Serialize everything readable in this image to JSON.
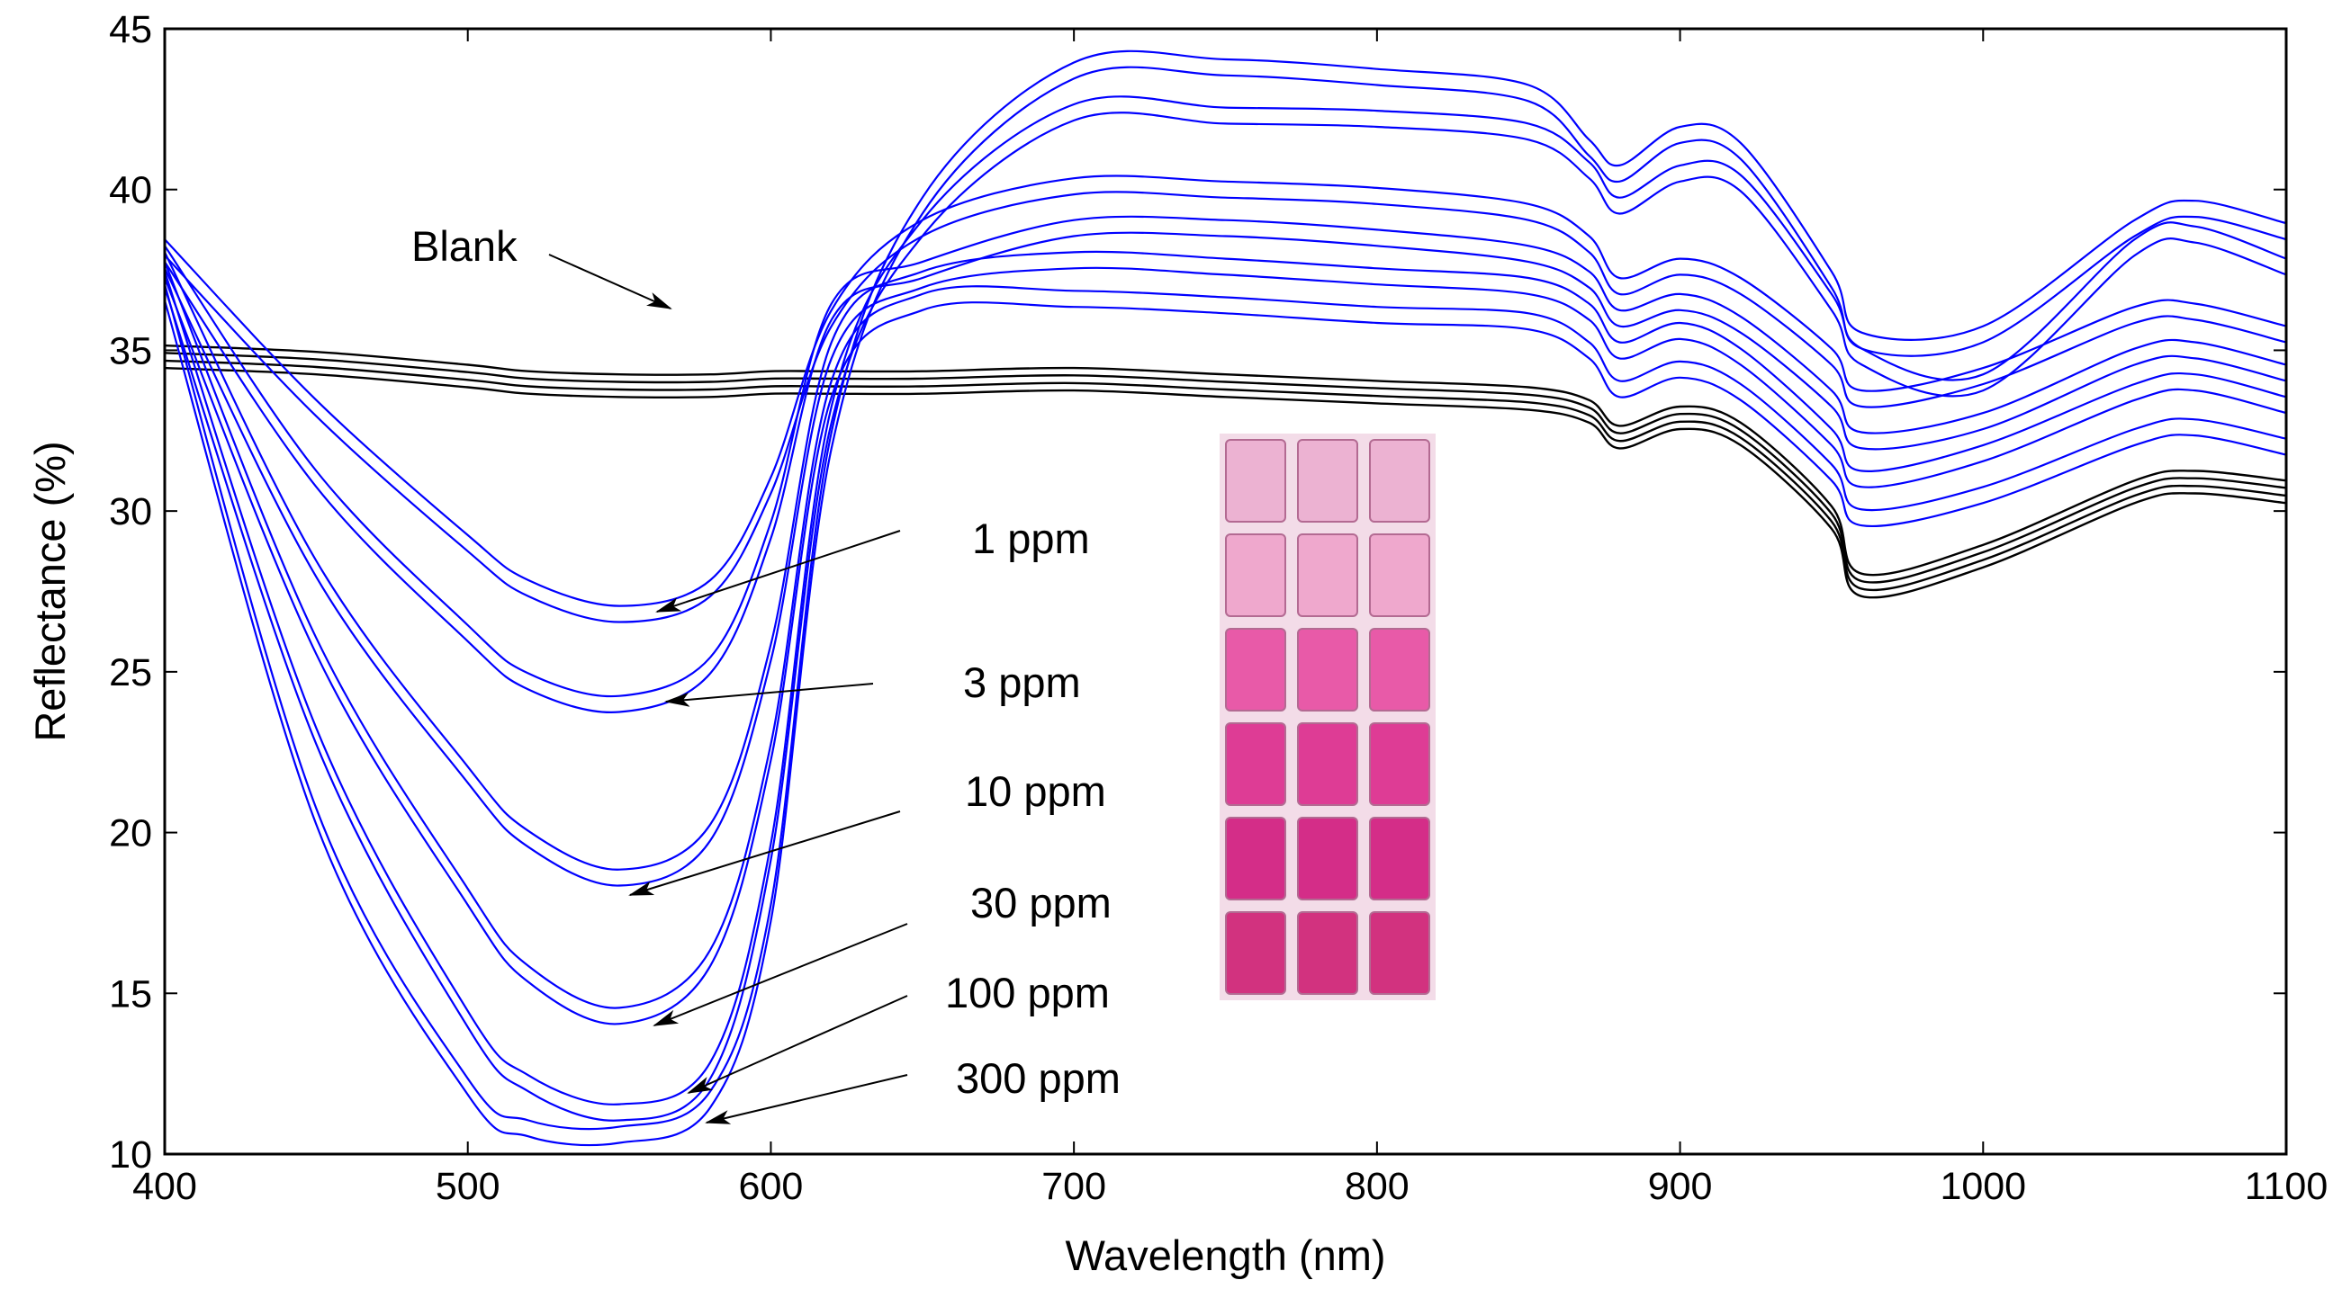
{
  "chart_data": {
    "type": "line",
    "title": "",
    "xlabel": "Wavelength (nm)",
    "ylabel": "Reflectance (%)",
    "xlim": [
      400,
      1100
    ],
    "ylim": [
      10,
      45
    ],
    "xticks": [
      400,
      500,
      600,
      700,
      800,
      900,
      1000,
      1100
    ],
    "yticks": [
      10,
      15,
      20,
      25,
      30,
      35,
      40,
      45
    ],
    "grid": false,
    "colors": {
      "samples": "#0000ff",
      "blank": "#000000",
      "axis": "#000000"
    },
    "x": [
      400,
      450,
      500,
      520,
      550,
      580,
      600,
      620,
      650,
      700,
      750,
      800,
      850,
      870,
      880,
      900,
      920,
      950,
      960,
      1000,
      1050,
      1070,
      1100
    ],
    "series": [
      {
        "name": "Blank",
        "color": "#000000",
        "values": [
          34.8,
          34.6,
          34.2,
          34.0,
          33.9,
          33.9,
          34.0,
          34.0,
          34.0,
          34.1,
          33.9,
          33.7,
          33.5,
          33.1,
          32.3,
          32.9,
          32.4,
          29.8,
          27.7,
          28.6,
          30.6,
          30.9,
          30.6
        ]
      },
      {
        "name": "1 ppm",
        "color": "#0000ff",
        "values": [
          38.2,
          33.2,
          29.0,
          27.6,
          26.8,
          27.6,
          30.8,
          36.0,
          38.8,
          40.1,
          40.0,
          39.8,
          39.3,
          38.3,
          37.0,
          37.6,
          37.0,
          34.8,
          33.5,
          34.2,
          36.1,
          36.2,
          35.5
        ]
      },
      {
        "name": "3 ppm",
        "color": "#0000ff",
        "values": [
          38.0,
          31.0,
          26.2,
          24.7,
          24.0,
          25.2,
          29.4,
          36.2,
          37.5,
          38.8,
          38.8,
          38.5,
          38.0,
          37.2,
          36.0,
          36.5,
          35.8,
          33.5,
          32.2,
          32.8,
          34.8,
          35.0,
          34.3
        ]
      },
      {
        "name": "10 ppm",
        "color": "#0000ff",
        "values": [
          37.8,
          28.2,
          21.8,
          19.8,
          18.6,
          20.0,
          25.6,
          35.0,
          37.2,
          37.8,
          37.6,
          37.3,
          37.0,
          36.2,
          35.0,
          35.6,
          34.8,
          32.3,
          31.0,
          31.8,
          33.7,
          34.0,
          33.3
        ]
      },
      {
        "name": "30 ppm",
        "color": "#0000ff",
        "values": [
          37.5,
          25.8,
          18.0,
          15.6,
          14.3,
          16.1,
          22.5,
          33.8,
          36.5,
          36.6,
          36.4,
          36.1,
          35.9,
          35.0,
          33.8,
          34.4,
          33.7,
          31.2,
          29.8,
          30.5,
          32.3,
          32.6,
          32.0
        ]
      },
      {
        "name": "100 ppm",
        "color": "#0000ff",
        "values": [
          37.2,
          23.0,
          14.2,
          12.2,
          11.3,
          12.6,
          19.4,
          33.0,
          38.8,
          42.4,
          42.3,
          42.2,
          41.8,
          40.6,
          39.5,
          40.5,
          40.2,
          36.5,
          34.8,
          34.0,
          38.2,
          38.6,
          37.6
        ]
      },
      {
        "name": "300 ppm",
        "color": "#0000ff",
        "values": [
          36.8,
          20.5,
          12.1,
          10.8,
          10.6,
          11.7,
          17.5,
          32.2,
          39.5,
          43.7,
          43.8,
          43.5,
          43.0,
          41.3,
          40.5,
          41.7,
          41.2,
          37.2,
          35.3,
          35.5,
          38.8,
          39.4,
          38.7
        ]
      }
    ],
    "annotations": [
      {
        "text": "Blank",
        "points_to": [
          570,
          35.7
        ]
      },
      {
        "text": "1 ppm",
        "points_to": [
          565,
          26.8
        ]
      },
      {
        "text": "3 ppm",
        "points_to": [
          565,
          24.0
        ]
      },
      {
        "text": "10 ppm",
        "points_to": [
          555,
          18.6
        ]
      },
      {
        "text": "30 ppm",
        "points_to": [
          563,
          14.2
        ]
      },
      {
        "text": "100 ppm",
        "points_to": [
          572,
          12.0
        ]
      },
      {
        "text": "300 ppm",
        "points_to": [
          575,
          11.0
        ]
      }
    ],
    "inset": {
      "description": "photo of color-changing sensor swatches",
      "rows": 6,
      "cols": 3,
      "row_colors": [
        "#ecb2d2",
        "#efa8cd",
        "#e85aa8",
        "#de3c95",
        "#d42d88",
        "#d2327f"
      ]
    }
  }
}
